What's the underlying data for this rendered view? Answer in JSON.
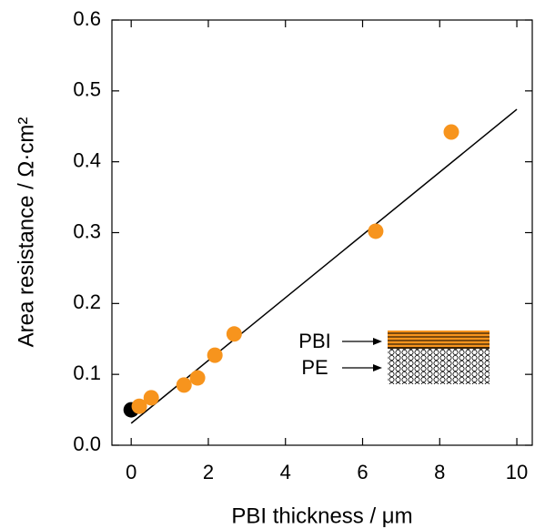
{
  "chart_data": {
    "type": "scatter",
    "x_label": "PBI thickness   / μm",
    "y_label": "Area resistance   / Ω·cm²",
    "xlim": [
      -0.5,
      10.4
    ],
    "ylim": [
      0,
      0.6
    ],
    "xticks": [
      0,
      2,
      4,
      6,
      8,
      10
    ],
    "yticks": [
      {
        "value": 0,
        "label": "0.0"
      },
      0.1,
      0.2,
      0.3,
      0.4,
      0.5,
      0.6
    ],
    "series": [
      {
        "color": "#000000",
        "x": [
          0
        ],
        "values": [
          0.05
        ]
      },
      {
        "color": "#f7941d",
        "x": [
          0.21,
          0.52,
          1.37,
          1.72,
          2.17,
          2.67,
          6.34,
          8.3
        ],
        "values": [
          0.055,
          0.067,
          0.085,
          0.095,
          0.127,
          0.157,
          0.302,
          0.442
        ]
      }
    ],
    "fit_line": {
      "color": "#000000",
      "x": [
        0,
        10
      ],
      "values": [
        0.031,
        0.474
      ]
    },
    "annotations": [
      "PBI",
      "PE"
    ]
  }
}
